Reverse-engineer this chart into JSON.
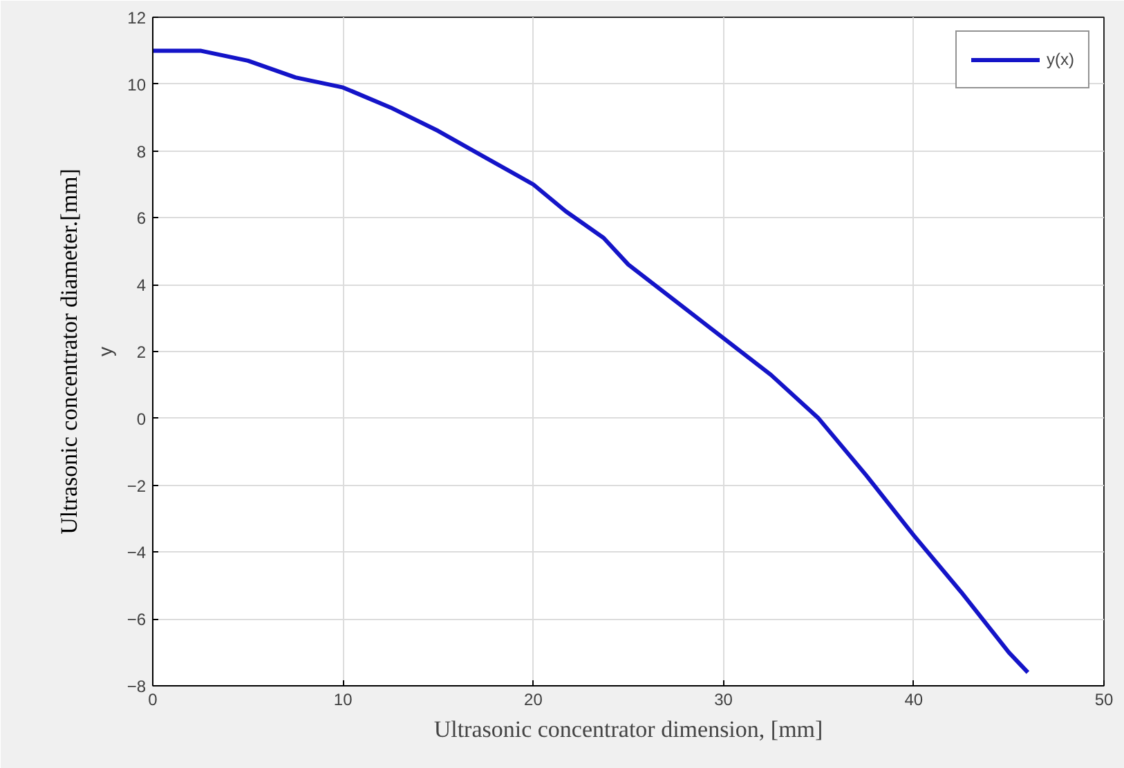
{
  "chart_data": {
    "type": "line",
    "xlabel": "Ultrasonic concentrator dimension, [mm]",
    "ylabel": "Ultrasonic concentrator diameter.[mm]",
    "annotations": [
      "y"
    ],
    "xlim": [
      0,
      50
    ],
    "ylim": [
      -8,
      12
    ],
    "xticks": [
      0,
      10,
      20,
      30,
      40,
      50
    ],
    "yticks": [
      -8,
      -6,
      -4,
      -2,
      0,
      2,
      4,
      6,
      8,
      10,
      12
    ],
    "grid": true,
    "legend": "top right",
    "marker": "none",
    "line_style": "solid",
    "series": [
      {
        "name": "y(x)",
        "color": "#1414c8",
        "x": [
          0,
          2.5,
          5,
          7.5,
          10,
          12.5,
          15,
          17.5,
          20,
          21.7,
          23.7,
          25,
          27.5,
          30,
          32.5,
          35,
          37.5,
          40,
          42.5,
          45,
          46
        ],
        "values": [
          11.0,
          11.0,
          10.7,
          10.2,
          9.9,
          9.3,
          8.6,
          7.8,
          7.0,
          6.2,
          5.4,
          4.6,
          3.5,
          2.4,
          1.3,
          0.0,
          -1.7,
          -3.5,
          -5.2,
          -7.0,
          -7.6
        ]
      }
    ]
  }
}
